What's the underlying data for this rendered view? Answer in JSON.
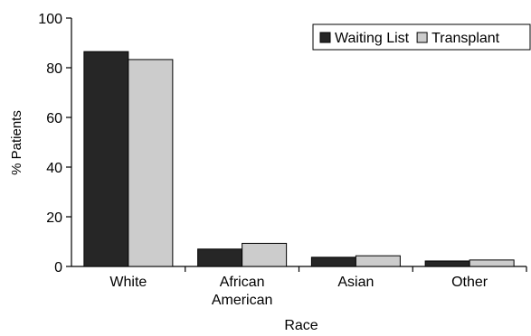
{
  "chart_data": {
    "type": "bar",
    "title": "",
    "xlabel": "Race",
    "ylabel": "% Patients",
    "categories": [
      [
        "White"
      ],
      [
        "African",
        "American"
      ],
      [
        "Asian"
      ],
      [
        "Other"
      ]
    ],
    "ylim": [
      0,
      100
    ],
    "yticks": [
      0,
      20,
      40,
      60,
      80,
      100
    ],
    "grid": false,
    "legend_position": "top-right",
    "series": [
      {
        "name": "Waiting List",
        "color": "#262626",
        "values": [
          86.5,
          7.0,
          3.7,
          2.2
        ]
      },
      {
        "name": "Transplant",
        "color": "#cccccc",
        "values": [
          83.3,
          9.3,
          4.3,
          2.6
        ]
      }
    ]
  }
}
